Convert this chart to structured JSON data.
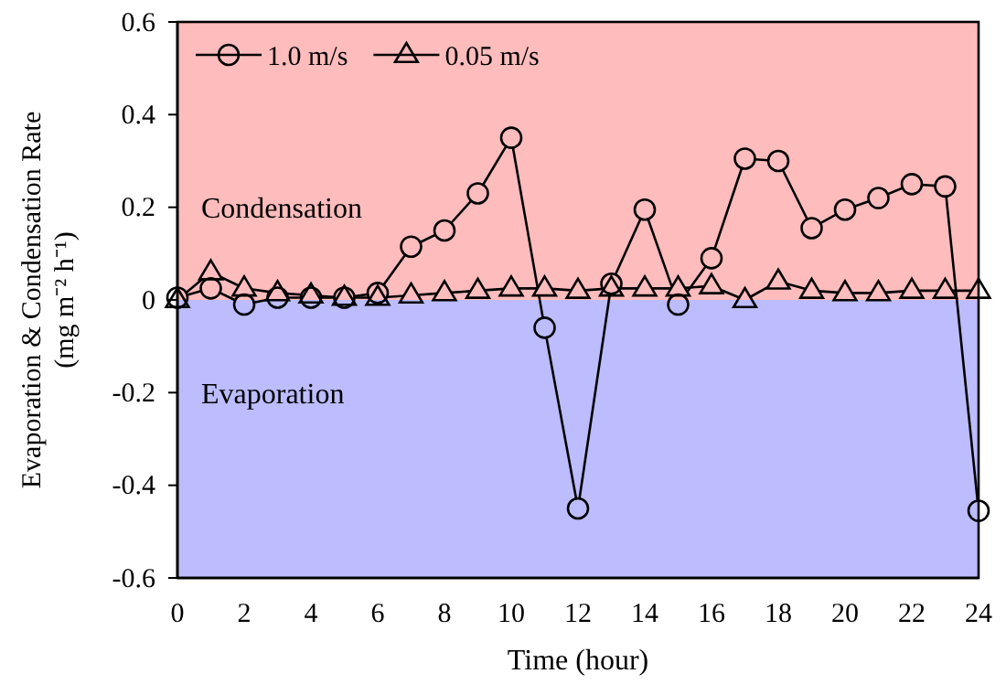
{
  "chart_data": {
    "type": "line",
    "xlabel": "Time (hour)",
    "ylabel": "Evaporation & Condensation Rate\n(mg m⁻² h⁻¹)",
    "x": [
      0,
      1,
      2,
      3,
      4,
      5,
      6,
      7,
      8,
      9,
      10,
      11,
      12,
      13,
      14,
      15,
      16,
      17,
      18,
      19,
      20,
      21,
      22,
      23,
      24
    ],
    "series": [
      {
        "name": "1.0 m/s",
        "color": "#000000",
        "marker": "circle",
        "values": [
          0.005,
          0.025,
          -0.01,
          0.005,
          0.005,
          0.005,
          0.015,
          0.115,
          0.15,
          0.23,
          0.35,
          -0.06,
          -0.45,
          0.035,
          0.195,
          -0.01,
          0.09,
          0.305,
          0.3,
          0.155,
          0.195,
          0.22,
          0.25,
          0.245,
          -0.455
        ]
      },
      {
        "name": "0.05 m/s",
        "color": "#000000",
        "marker": "triangle",
        "values": [
          0,
          0.06,
          0.025,
          0.015,
          0.01,
          0.005,
          0.005,
          0.01,
          0.015,
          0.02,
          0.025,
          0.025,
          0.02,
          0.025,
          0.025,
          0.025,
          0.03,
          0,
          0.04,
          0.02,
          0.015,
          0.015,
          0.02,
          0.02,
          0.02
        ]
      }
    ],
    "xlim": [
      0,
      24
    ],
    "xticks": [
      0,
      2,
      4,
      6,
      8,
      10,
      12,
      14,
      16,
      18,
      20,
      22,
      24
    ],
    "ylim": [
      -0.6,
      0.6
    ],
    "yticks": [
      -0.6,
      -0.4,
      -0.2,
      0,
      0.2,
      0.4,
      0.6
    ],
    "bands": [
      {
        "axis": "y",
        "from": 0,
        "to": 0.6,
        "label": "Condensation",
        "color": "#ffbcbc"
      },
      {
        "axis": "y",
        "from": 0,
        "to": -0.6,
        "label": "Evaporation",
        "color": "#bcbcff"
      }
    ],
    "grid": false,
    "legend": "top left",
    "line_style": "solid"
  }
}
